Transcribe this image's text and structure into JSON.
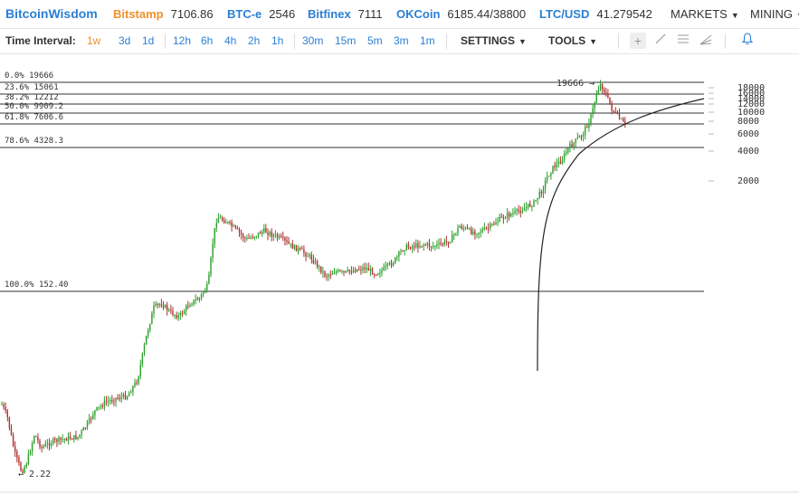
{
  "app": {
    "brand": "BitcoinWisdom"
  },
  "tickers": [
    {
      "name": "Bitstamp",
      "price": "7106.86",
      "color": "#f0902a"
    },
    {
      "name": "BTC-e",
      "price": "2546",
      "color": "#2a7fd4"
    },
    {
      "name": "Bitfinex",
      "price": "7111",
      "color": "#2a7fd4"
    },
    {
      "name": "OKCoin",
      "price": "6185.44/38800",
      "color": "#2a7fd4"
    },
    {
      "name": "LTC/USD",
      "price": "41.279542",
      "color": "#2a7fd4"
    }
  ],
  "menus": {
    "markets": "MARKETS",
    "mining": "MINING"
  },
  "toolbar": {
    "interval_label": "Time Interval:",
    "intervals": [
      "1w",
      "3d",
      "1d",
      "12h",
      "6h",
      "4h",
      "2h",
      "1h",
      "30m",
      "15m",
      "5m",
      "3m",
      "1m"
    ],
    "active_interval": "1w",
    "settings": "SETTINGS",
    "tools": "TOOLS",
    "tool_icons": [
      "crosshair-icon",
      "line-draw-icon",
      "fib-lines-icon",
      "fan-icon",
      "alert-bell-icon"
    ]
  },
  "chart_data": {
    "type": "candlestick",
    "scale": "log",
    "y_ticks": [
      "18000",
      "16000",
      "14000",
      "12000",
      "10000",
      "8000",
      "6000",
      "4000",
      "2000"
    ],
    "fib_levels": [
      {
        "label": "0.0%",
        "value": "19666"
      },
      {
        "label": "23.6%",
        "value": "15061"
      },
      {
        "label": "38.2%",
        "value": "12212"
      },
      {
        "label": "50.0%",
        "value": "9909.2"
      },
      {
        "label": "61.8%",
        "value": "7606.6"
      },
      {
        "label": "78.6%",
        "value": "4328.3"
      },
      {
        "label": "100.0%",
        "value": "152.40"
      }
    ],
    "annotations": {
      "high": "19666",
      "low": "2.22"
    },
    "colors": {
      "up": "#2ca02c",
      "down": "#b03030",
      "line": "#333333"
    }
  }
}
